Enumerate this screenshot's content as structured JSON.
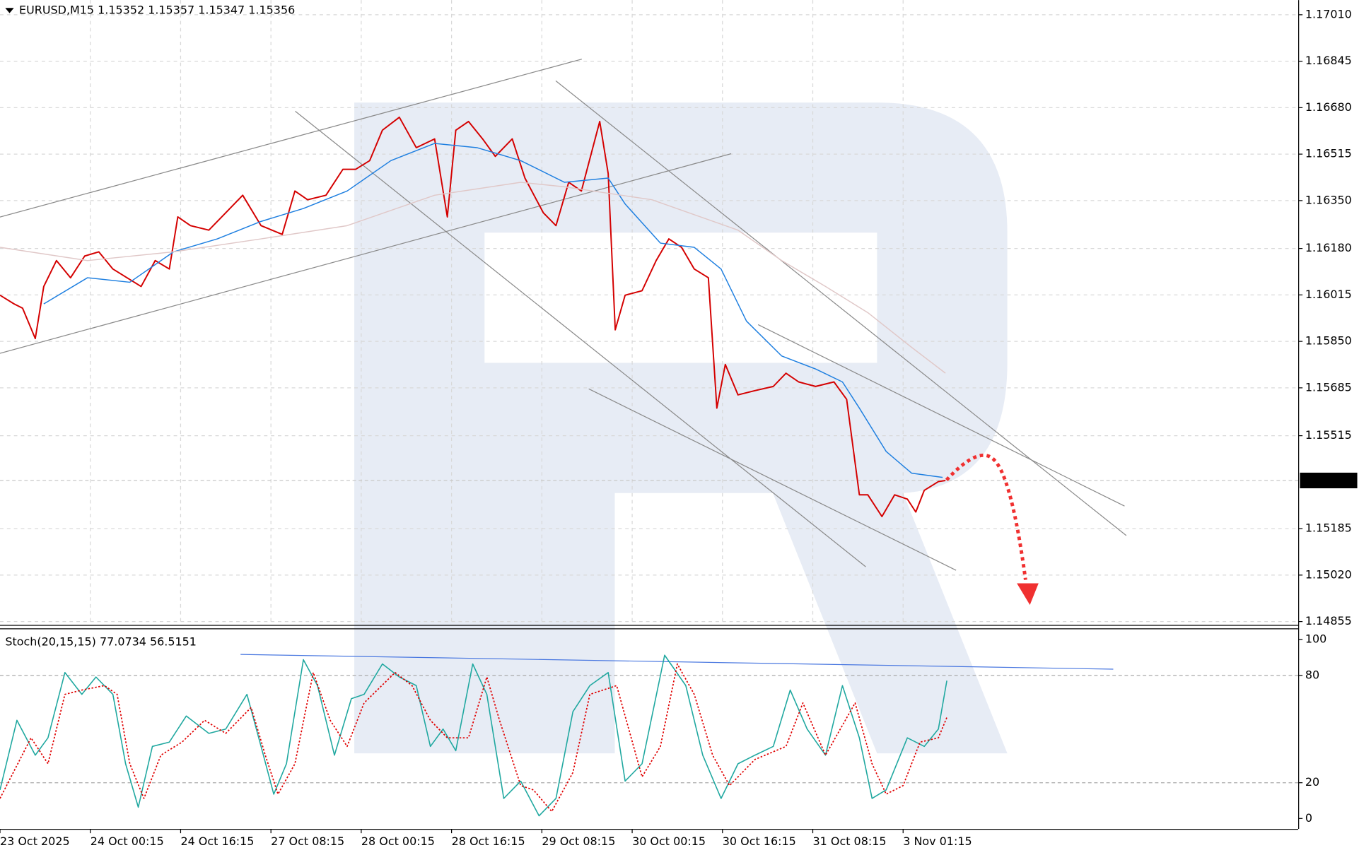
{
  "chart_data": [
    {
      "type": "line",
      "title": "EURUSD,M15  1.15352 1.15357 1.15347 1.15356",
      "xlim": [
        0,
        920
      ],
      "ylim": [
        1.14843,
        1.17062
      ],
      "yticks": [
        {
          "value": 1.1701,
          "label": "1.17010"
        },
        1.16845,
        {
          "value": 1.1668,
          "label": "1.16680"
        },
        1.16515,
        {
          "value": 1.1635,
          "label": "1.16350"
        },
        {
          "value": 1.1618,
          "label": "1.16180"
        },
        1.16015,
        {
          "value": 1.1585,
          "label": "1.15850"
        },
        1.15685,
        1.15515,
        1.15185,
        {
          "value": 1.1502,
          "label": "1.15020"
        },
        1.14855
      ],
      "grid": true,
      "current_price": 1.15356,
      "series": [
        {
          "color": "#d40000",
          "width": 1.6,
          "x": [
            0,
            10,
            16,
            25,
            31,
            40,
            50,
            60,
            70,
            80,
            90,
            100,
            110,
            120,
            126,
            135,
            148,
            160,
            172,
            185,
            200,
            209,
            218,
            231,
            243,
            252,
            262,
            271,
            283,
            295,
            308,
            317,
            323,
            332,
            342,
            351,
            363,
            372,
            385,
            394,
            403,
            412,
            425,
            431,
            436,
            443,
            455,
            465,
            474,
            483,
            492,
            502,
            508,
            514,
            523,
            535,
            548,
            557,
            566,
            578,
            591,
            600,
            609,
            615,
            625,
            634,
            643,
            649,
            655,
            665,
            670
          ],
          "values": [
            1.16014,
            1.15983,
            1.15968,
            1.1586,
            1.16045,
            1.16137,
            1.16076,
            1.16153,
            1.16168,
            1.16107,
            1.16076,
            1.16045,
            1.16137,
            1.16107,
            1.16292,
            1.16261,
            1.16245,
            1.16307,
            1.16369,
            1.16261,
            1.1623,
            1.16384,
            1.16353,
            1.16369,
            1.16461,
            1.16461,
            1.16492,
            1.166,
            1.16646,
            1.16538,
            1.16569,
            1.16292,
            1.166,
            1.16631,
            1.16569,
            1.16507,
            1.16569,
            1.1643,
            1.16307,
            1.16261,
            1.16415,
            1.16384,
            1.16631,
            1.16446,
            1.15891,
            1.16014,
            1.1603,
            1.16137,
            1.16214,
            1.16184,
            1.16107,
            1.16076,
            1.15613,
            1.15768,
            1.1566,
            1.15675,
            1.1569,
            1.15737,
            1.15706,
            1.1569,
            1.15706,
            1.15644,
            1.15305,
            1.15305,
            1.15228,
            1.15305,
            1.1529,
            1.15244,
            1.15321,
            1.15352,
            1.15356
          ]
        },
        {
          "color": "#1e7fe0",
          "width": 1.2,
          "x": [
            31,
            62,
            92,
            123,
            154,
            185,
            215,
            246,
            277,
            308,
            338,
            369,
            400,
            431,
            443,
            468,
            492,
            511,
            529,
            554,
            578,
            597,
            609,
            628,
            646,
            668
          ],
          "values": [
            1.15983,
            1.16076,
            1.1606,
            1.16168,
            1.16214,
            1.16276,
            1.16322,
            1.16384,
            1.16492,
            1.16553,
            1.16538,
            1.16492,
            1.16415,
            1.1643,
            1.16338,
            1.16199,
            1.16184,
            1.16107,
            1.15922,
            1.15798,
            1.15752,
            1.15706,
            1.15613,
            1.15459,
            1.15382,
            1.15367
          ]
        },
        {
          "color": "#e0c8c8",
          "width": 1.2,
          "x": [
            0,
            62,
            123,
            185,
            246,
            308,
            369,
            400,
            462,
            523,
            554,
            585,
            615,
            646,
            670
          ],
          "values": [
            1.16184,
            1.16137,
            1.16168,
            1.16214,
            1.16261,
            1.16369,
            1.16415,
            1.16399,
            1.16353,
            1.16245,
            1.16137,
            1.16045,
            1.15952,
            1.15829,
            1.15737
          ]
        }
      ]
    },
    {
      "type": "line",
      "title": "Stoch(20,15,15) 77.0734 56.5151",
      "xlim": [
        0,
        920
      ],
      "ylim": [
        -5.8,
        105.8
      ],
      "yticks": [
        100,
        80,
        20,
        0
      ],
      "levels": [
        80,
        20
      ],
      "xticks": [
        {
          "value": 0,
          "label": "23 Oct 2025"
        },
        {
          "value": 64,
          "label": "24 Oct 00:15"
        },
        {
          "value": 128,
          "label": "24 Oct 16:15"
        },
        {
          "value": 192,
          "label": "27 Oct 08:15"
        },
        {
          "value": 256,
          "label": "28 Oct 00:15"
        },
        {
          "value": 320,
          "label": "28 Oct 16:15"
        },
        {
          "value": 384,
          "label": "29 Oct 08:15"
        },
        {
          "value": 448,
          "label": "30 Oct 00:15"
        },
        {
          "value": 512,
          "label": "30 Oct 16:15"
        },
        {
          "value": 576,
          "label": "31 Oct 08:15"
        },
        {
          "value": 640,
          "label": "3 Nov 01:15"
        }
      ],
      "series": [
        {
          "color": "#20a8a0",
          "width": 1.3,
          "x": [
            0,
            12,
            25,
            34,
            46,
            58,
            68,
            80,
            89,
            98,
            108,
            120,
            132,
            148,
            160,
            175,
            185,
            194,
            203,
            215,
            225,
            237,
            249,
            258,
            271,
            283,
            295,
            305,
            314,
            323,
            335,
            345,
            357,
            369,
            382,
            394,
            406,
            418,
            431,
            443,
            455,
            471,
            486,
            498,
            511,
            523,
            535,
            548,
            560,
            572,
            585,
            597,
            609,
            618,
            628,
            643,
            655,
            665,
            671
          ],
          "values": [
            16,
            54.9,
            35.4,
            45.1,
            81.6,
            69.4,
            79.1,
            69.4,
            30.6,
            6.3,
            40.3,
            42.7,
            57.3,
            47.6,
            50,
            69.4,
            40.3,
            13.6,
            30.6,
            88.8,
            74.3,
            35.4,
            67,
            69.4,
            86.4,
            79.1,
            74.3,
            40.3,
            50,
            37.9,
            86.4,
            69.4,
            11.2,
            20.9,
            1.5,
            11.2,
            59.7,
            74.3,
            81.6,
            20.9,
            30.6,
            91.3,
            74.3,
            35.4,
            11.2,
            30.6,
            35.4,
            40.3,
            71.8,
            50,
            35.4,
            74.3,
            45.1,
            11.2,
            16,
            45.1,
            40.3,
            50,
            77.0734
          ]
        },
        {
          "color": "#e00000",
          "width": 1.4,
          "line_style": "dotted",
          "x": [
            0,
            22,
            34,
            46,
            58,
            74,
            83,
            92,
            102,
            114,
            129,
            145,
            160,
            178,
            188,
            197,
            209,
            222,
            234,
            246,
            258,
            280,
            292,
            305,
            317,
            332,
            345,
            354,
            369,
            378,
            391,
            406,
            418,
            437,
            455,
            468,
            480,
            492,
            505,
            517,
            535,
            557,
            569,
            585,
            606,
            618,
            628,
            640,
            652,
            665,
            671
          ],
          "values": [
            11.2,
            45.1,
            30.6,
            69.4,
            71.8,
            74.3,
            69.4,
            30.6,
            11.2,
            35.4,
            42.7,
            54.9,
            47.6,
            62.1,
            35.4,
            13.6,
            30.6,
            81.6,
            54.9,
            40.3,
            64.6,
            81.6,
            74.3,
            54.9,
            45.1,
            45.1,
            79.1,
            54.9,
            18.4,
            16,
            3.9,
            25.7,
            69.4,
            74.3,
            23.3,
            40.3,
            86.4,
            69.4,
            35.4,
            18.4,
            33,
            40.3,
            64.6,
            35.4,
            64.6,
            30.6,
            13.6,
            18.4,
            42.7,
            45.1,
            56.5151
          ]
        }
      ]
    }
  ]
}
